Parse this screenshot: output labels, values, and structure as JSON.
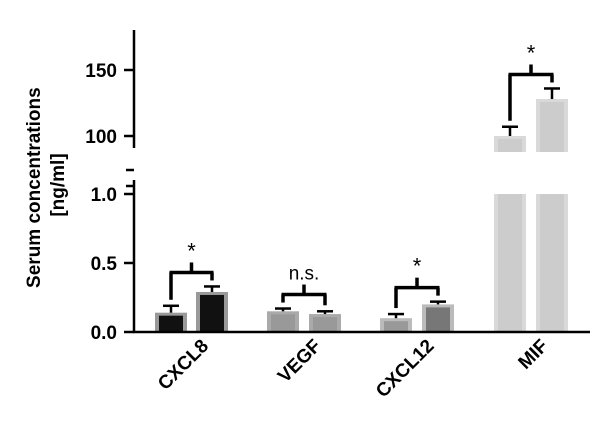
{
  "chart_data": {
    "type": "bar",
    "ylabel_lines": [
      "Serum concentrations",
      "[ng/ml]"
    ],
    "categories": [
      "CXCL8",
      "VEGF",
      "CXCL12",
      "MIF"
    ],
    "y_axis": {
      "broken": true,
      "lower_segment": {
        "ylim": [
          0,
          1.0
        ],
        "ticks": [
          "0.0",
          "0.5",
          "1.0"
        ]
      },
      "upper_segment": {
        "ylim": [
          100,
          150
        ],
        "ticks": [
          "100",
          "150"
        ]
      }
    },
    "groups": [
      {
        "category": "CXCL8",
        "bars": [
          {
            "value": 0.14,
            "error": 0.05,
            "fill": "#111111",
            "border": "#999999"
          },
          {
            "value": 0.29,
            "error": 0.04,
            "fill": "#111111",
            "border": "#999999"
          }
        ],
        "significance": "*"
      },
      {
        "category": "VEGF",
        "bars": [
          {
            "value": 0.15,
            "error": 0.02,
            "fill": "#999999",
            "border": "#aaaaaa"
          },
          {
            "value": 0.13,
            "error": 0.02,
            "fill": "#999999",
            "border": "#aaaaaa"
          }
        ],
        "significance": "n.s."
      },
      {
        "category": "CXCL12",
        "bars": [
          {
            "value": 0.1,
            "error": 0.03,
            "fill": "#999999",
            "border": "#bbbbbb"
          },
          {
            "value": 0.2,
            "error": 0.02,
            "fill": "#777777",
            "border": "#bbbbbb"
          }
        ],
        "significance": "*"
      },
      {
        "category": "MIF",
        "bars": [
          {
            "value": 100,
            "error": 7,
            "fill": "#cccccc",
            "border": "#d9d9d9"
          },
          {
            "value": 128,
            "error": 8,
            "fill": "#cccccc",
            "border": "#d9d9d9"
          }
        ],
        "significance": "*"
      }
    ]
  }
}
